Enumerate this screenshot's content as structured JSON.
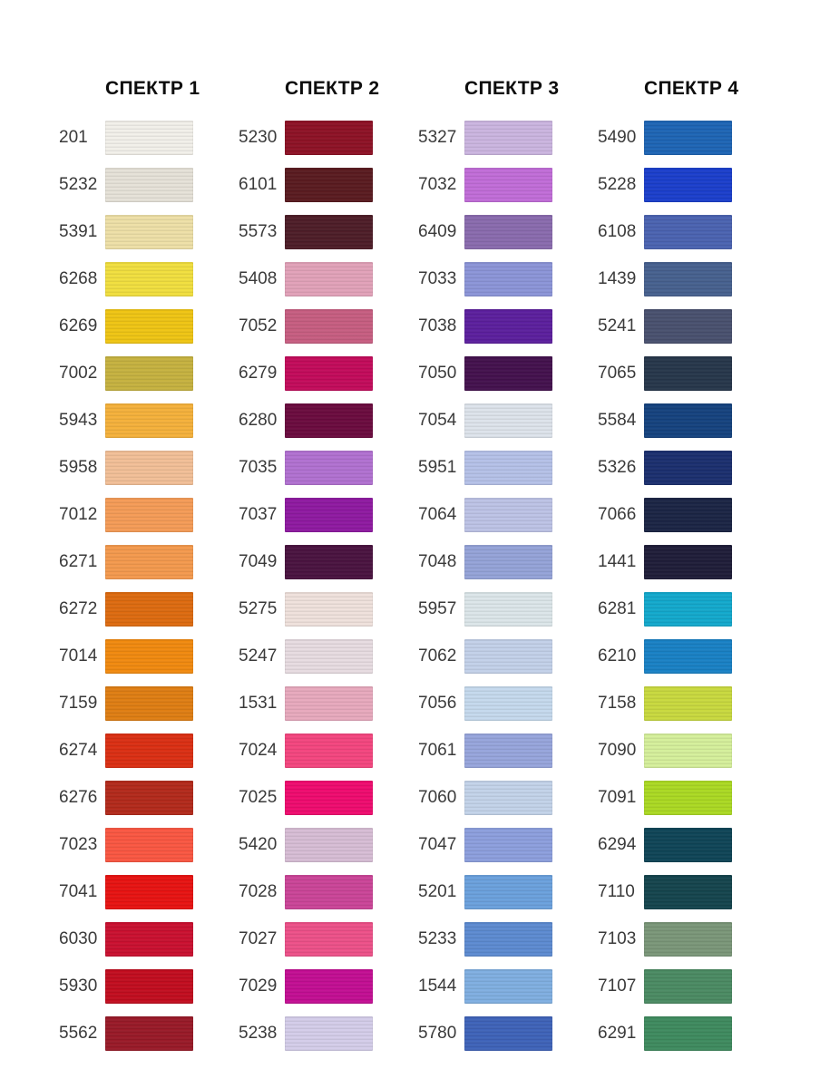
{
  "page": {
    "background": "#ffffff",
    "text_color": "#3a3a3a",
    "header_color": "#0d0d0d"
  },
  "chart_data": {
    "type": "table",
    "title": "",
    "description": "Thread color swatch chart with four spectrum columns, each listing 20 thread codes and their swatch colors",
    "legend_position": "none",
    "columns": [
      {
        "header": "СПЕКТР 1",
        "swatches": [
          {
            "code": "201",
            "color": "#F2F0EA"
          },
          {
            "code": "5232",
            "color": "#E6E2D8"
          },
          {
            "code": "5391",
            "color": "#EEE0A7"
          },
          {
            "code": "6268",
            "color": "#F1DF3F"
          },
          {
            "code": "6269",
            "color": "#EFC514"
          },
          {
            "code": "7002",
            "color": "#C6B240"
          },
          {
            "code": "5943",
            "color": "#F5B13B"
          },
          {
            "code": "5958",
            "color": "#F2BF97"
          },
          {
            "code": "7012",
            "color": "#F59C57"
          },
          {
            "code": "6271",
            "color": "#F49A4E"
          },
          {
            "code": "6272",
            "color": "#DE6B10"
          },
          {
            "code": "7014",
            "color": "#F18A0F"
          },
          {
            "code": "7159",
            "color": "#DF7E13"
          },
          {
            "code": "6274",
            "color": "#DB2F13"
          },
          {
            "code": "6276",
            "color": "#B32A1B"
          },
          {
            "code": "7023",
            "color": "#FA5742"
          },
          {
            "code": "7041",
            "color": "#E81312"
          },
          {
            "code": "6030",
            "color": "#CA1030"
          },
          {
            "code": "5930",
            "color": "#C20D1F"
          },
          {
            "code": "5562",
            "color": "#991A28"
          }
        ]
      },
      {
        "header": "СПЕКТР 2",
        "swatches": [
          {
            "code": "5230",
            "color": "#8E1226"
          },
          {
            "code": "6101",
            "color": "#5A1B20"
          },
          {
            "code": "5573",
            "color": "#4E1D28"
          },
          {
            "code": "5408",
            "color": "#E2A2B9"
          },
          {
            "code": "7052",
            "color": "#C75E81"
          },
          {
            "code": "6279",
            "color": "#C30B5B"
          },
          {
            "code": "6280",
            "color": "#6B0B3F"
          },
          {
            "code": "7035",
            "color": "#B171D1"
          },
          {
            "code": "7037",
            "color": "#8F1AA1"
          },
          {
            "code": "7049",
            "color": "#4A1340"
          },
          {
            "code": "5275",
            "color": "#EFE1DC"
          },
          {
            "code": "5247",
            "color": "#E7DCE1"
          },
          {
            "code": "1531",
            "color": "#E7A9BD"
          },
          {
            "code": "7024",
            "color": "#F4467F"
          },
          {
            "code": "7025",
            "color": "#EF0B6F"
          },
          {
            "code": "5420",
            "color": "#D7BDD5"
          },
          {
            "code": "7028",
            "color": "#CB4598"
          },
          {
            "code": "7027",
            "color": "#ED5189"
          },
          {
            "code": "7029",
            "color": "#C30E93"
          },
          {
            "code": "5238",
            "color": "#D4CDE9"
          }
        ]
      },
      {
        "header": "СПЕКТР 3",
        "swatches": [
          {
            "code": "5327",
            "color": "#CBB5E0"
          },
          {
            "code": "7032",
            "color": "#C16DD8"
          },
          {
            "code": "6409",
            "color": "#8A6BAE"
          },
          {
            "code": "7033",
            "color": "#8C95D8"
          },
          {
            "code": "7038",
            "color": "#5C1F9E"
          },
          {
            "code": "7050",
            "color": "#44114E"
          },
          {
            "code": "7054",
            "color": "#DDE3EB"
          },
          {
            "code": "5951",
            "color": "#B5C1E8"
          },
          {
            "code": "7064",
            "color": "#BDC3E6"
          },
          {
            "code": "7048",
            "color": "#95A3D8"
          },
          {
            "code": "5957",
            "color": "#DCE6E9"
          },
          {
            "code": "7062",
            "color": "#C3D1E9"
          },
          {
            "code": "7056",
            "color": "#C5D9ED"
          },
          {
            "code": "7061",
            "color": "#97A5DC"
          },
          {
            "code": "7060",
            "color": "#C3D3E9"
          },
          {
            "code": "7047",
            "color": "#8D9FDE"
          },
          {
            "code": "5201",
            "color": "#6BA1DD"
          },
          {
            "code": "5233",
            "color": "#5D8BD1"
          },
          {
            "code": "1544",
            "color": "#80AFE1"
          },
          {
            "code": "5780",
            "color": "#3F63B9"
          }
        ]
      },
      {
        "header": "СПЕКТР 4",
        "swatches": [
          {
            "code": "5490",
            "color": "#1E65B5"
          },
          {
            "code": "5228",
            "color": "#1B3FCC"
          },
          {
            "code": "6108",
            "color": "#4B63B1"
          },
          {
            "code": "1439",
            "color": "#47618F"
          },
          {
            "code": "5241",
            "color": "#49516F"
          },
          {
            "code": "7065",
            "color": "#27374B"
          },
          {
            "code": "5584",
            "color": "#15437F"
          },
          {
            "code": "5326",
            "color": "#1B2F6F"
          },
          {
            "code": "7066",
            "color": "#1B2545"
          },
          {
            "code": "1441",
            "color": "#1F1D39"
          },
          {
            "code": "6281",
            "color": "#13A9CD"
          },
          {
            "code": "6210",
            "color": "#1981C5"
          },
          {
            "code": "7158",
            "color": "#C9D93F"
          },
          {
            "code": "7090",
            "color": "#D5EF9B"
          },
          {
            "code": "7091",
            "color": "#ABD923"
          },
          {
            "code": "6294",
            "color": "#0F4557"
          },
          {
            "code": "7110",
            "color": "#15454E"
          },
          {
            "code": "7103",
            "color": "#7B9779"
          },
          {
            "code": "7107",
            "color": "#4B8B63"
          },
          {
            "code": "6291",
            "color": "#3F8B5F"
          }
        ]
      }
    ]
  }
}
